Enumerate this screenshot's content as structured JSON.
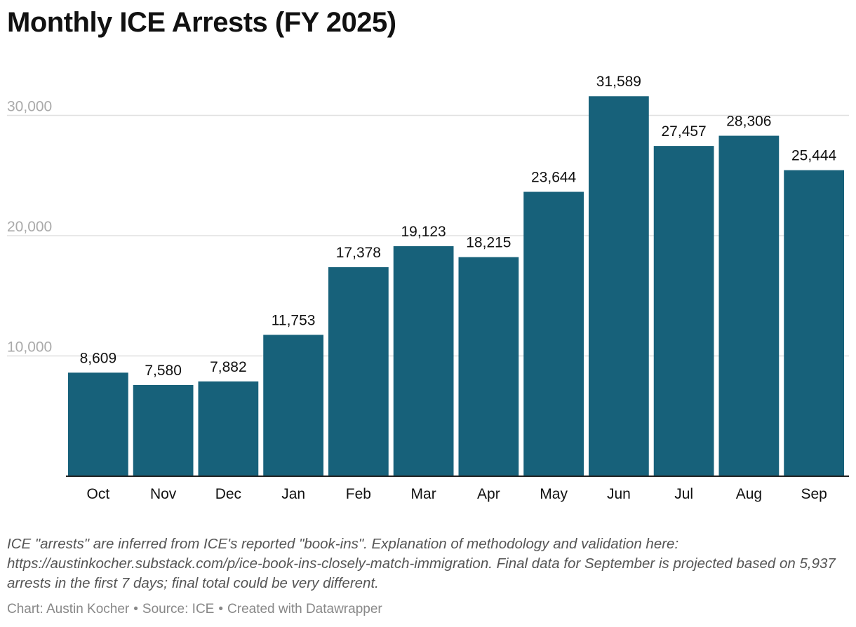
{
  "title": "Monthly ICE Arrests (FY 2025)",
  "chart_data": {
    "type": "bar",
    "title": "Monthly ICE Arrests (FY 2025)",
    "categories": [
      "Oct",
      "Nov",
      "Dec",
      "Jan",
      "Feb",
      "Mar",
      "Apr",
      "May",
      "Jun",
      "Jul",
      "Aug",
      "Sep"
    ],
    "values": [
      8609,
      7580,
      7882,
      11753,
      17378,
      19123,
      18215,
      23644,
      31589,
      27457,
      28306,
      25444
    ],
    "value_labels": [
      "8,609",
      "7,580",
      "7,882",
      "11,753",
      "17,378",
      "19,123",
      "18,215",
      "23,644",
      "31,589",
      "27,457",
      "28,306",
      "25,444"
    ],
    "yticks": [
      10000,
      20000,
      30000
    ],
    "ytick_labels": [
      "10,000",
      "20,000",
      "30,000"
    ],
    "ylim": [
      0,
      33000
    ],
    "xlabel": "",
    "ylabel": "",
    "grid": true,
    "bar_color": "#17617a",
    "gridline_color": "#e0e0e0",
    "tick_label_color": "#aaaaaa"
  },
  "note": "ICE \"arrests\" are inferred from ICE's reported \"book-ins\". Explanation of methodology and validation here: https://austinkocher.substack.com/p/ice-book-ins-closely-match-immigration. Final data for September is projected based on 5,937 arrests in the first 7 days; final total could be very different.",
  "footer": {
    "chart_credit": "Chart: Austin Kocher",
    "source": "Source: ICE",
    "created_with": "Created with Datawrapper",
    "separator": "•"
  }
}
